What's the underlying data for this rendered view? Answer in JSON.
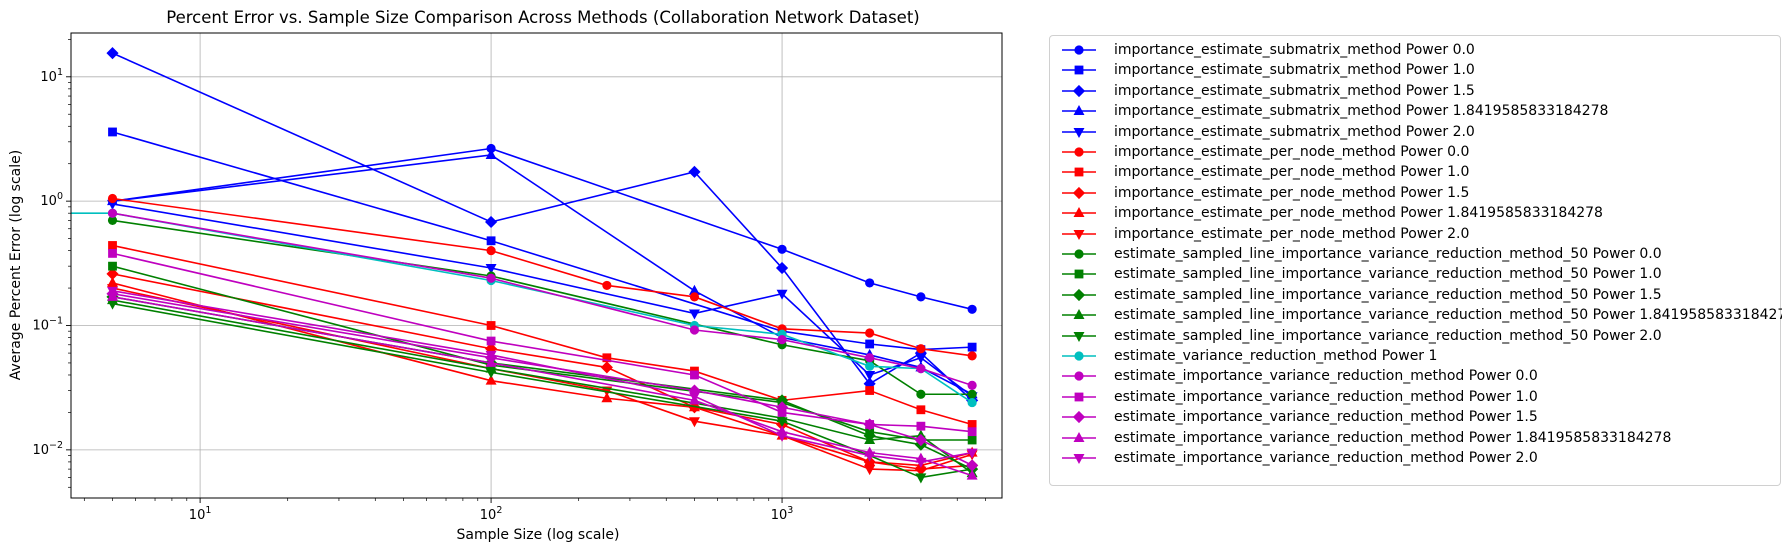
{
  "chart_data": {
    "type": "line",
    "title": "Percent Error vs. Sample Size Comparison Across Methods (Collaboration Network Dataset)",
    "xlabel": "Sample Size (log scale)",
    "ylabel": "Average Percent Error (log scale)",
    "xscale": "log",
    "yscale": "log",
    "xlim": [
      3.6,
      5700
    ],
    "ylim": [
      0.0041,
      22.5
    ],
    "grid": true,
    "legend_position": "outside-right",
    "x_ticks": [
      {
        "value": 10,
        "base": "10",
        "exp": "1"
      },
      {
        "value": 100,
        "base": "10",
        "exp": "2"
      },
      {
        "value": 1000,
        "base": "10",
        "exp": "3"
      }
    ],
    "y_ticks": [
      {
        "value": 0.01,
        "base": "10",
        "exp": "−2"
      },
      {
        "value": 0.1,
        "base": "10",
        "exp": "−1"
      },
      {
        "value": 1,
        "base": "10",
        "exp": "0"
      },
      {
        "value": 10,
        "base": "10",
        "exp": "1"
      }
    ],
    "series": [
      {
        "name": "importance_estimate_submatrix_method Power 0.0",
        "color": "#0000ff",
        "marker": "circle",
        "x": [
          5,
          100,
          1000,
          2000,
          3000,
          4500
        ],
        "y": [
          1.0,
          2.65,
          0.41,
          0.22,
          0.17,
          0.135
        ]
      },
      {
        "name": "importance_estimate_submatrix_method Power 1.0",
        "color": "#0000ff",
        "marker": "square",
        "x": [
          5,
          100,
          1000,
          2000,
          3000,
          4500
        ],
        "y": [
          3.6,
          0.48,
          0.09,
          0.071,
          0.064,
          0.067
        ]
      },
      {
        "name": "importance_estimate_submatrix_method Power 1.5",
        "color": "#0000ff",
        "marker": "diamond",
        "x": [
          5,
          100,
          500,
          1000,
          2000,
          3000,
          4500
        ],
        "y": [
          15.5,
          0.68,
          1.72,
          0.29,
          0.034,
          0.06,
          0.025
        ]
      },
      {
        "name": "importance_estimate_submatrix_method Power 1.8419585833184278",
        "color": "#0000ff",
        "marker": "triangle-up",
        "x": [
          5,
          100,
          500,
          1000,
          2000,
          3000,
          4500
        ],
        "y": [
          1.0,
          2.35,
          0.19,
          0.08,
          0.058,
          0.046,
          0.028
        ]
      },
      {
        "name": "importance_estimate_submatrix_method Power 2.0",
        "color": "#0000ff",
        "marker": "triangle-down",
        "x": [
          5,
          100,
          500,
          1000,
          2000,
          3000,
          4500
        ],
        "y": [
          0.95,
          0.29,
          0.125,
          0.18,
          0.04,
          0.055,
          0.027
        ]
      },
      {
        "name": "importance_estimate_per_node_method Power 0.0",
        "color": "#ff0000",
        "marker": "circle",
        "x": [
          5,
          100,
          250,
          500,
          1000,
          2000,
          3000,
          4500
        ],
        "y": [
          1.05,
          0.4,
          0.21,
          0.17,
          0.094,
          0.087,
          0.065,
          0.057
        ]
      },
      {
        "name": "importance_estimate_per_node_method Power 1.0",
        "color": "#ff0000",
        "marker": "square",
        "x": [
          5,
          100,
          250,
          500,
          1000,
          2000,
          3000,
          4500
        ],
        "y": [
          0.44,
          0.1,
          0.055,
          0.043,
          0.025,
          0.03,
          0.021,
          0.016
        ]
      },
      {
        "name": "importance_estimate_per_node_method Power 1.5",
        "color": "#ff0000",
        "marker": "diamond",
        "x": [
          5,
          100,
          250,
          500,
          1000,
          2000,
          3000,
          4500
        ],
        "y": [
          0.26,
          0.065,
          0.046,
          0.022,
          0.016,
          0.008,
          0.007,
          0.0075
        ]
      },
      {
        "name": "importance_estimate_per_node_method Power 1.8419585833184278",
        "color": "#ff0000",
        "marker": "triangle-up",
        "x": [
          5,
          100,
          250,
          500,
          1000,
          2000,
          3000,
          4500
        ],
        "y": [
          0.22,
          0.036,
          0.026,
          0.022,
          0.013,
          0.008,
          0.0075,
          0.0095
        ]
      },
      {
        "name": "importance_estimate_per_node_method Power 2.0",
        "color": "#ff0000",
        "marker": "triangle-down",
        "x": [
          5,
          100,
          250,
          500,
          1000,
          2000,
          3000,
          4500
        ],
        "y": [
          0.2,
          0.045,
          0.03,
          0.017,
          0.013,
          0.007,
          0.0068,
          0.0092
        ]
      },
      {
        "name": "estimate_sampled_line_importance_variance_reduction_method_50 Power 0.0",
        "color": "#008000",
        "marker": "circle",
        "x": [
          5,
          100,
          1000,
          2000,
          3000,
          4500
        ],
        "y": [
          0.7,
          0.25,
          0.07,
          0.052,
          0.028,
          0.028
        ]
      },
      {
        "name": "estimate_sampled_line_importance_variance_reduction_method_50 Power 1.0",
        "color": "#008000",
        "marker": "square",
        "x": [
          5,
          100,
          1000,
          2000,
          3000,
          4500
        ],
        "y": [
          0.3,
          0.048,
          0.024,
          0.014,
          0.012,
          0.012
        ]
      },
      {
        "name": "estimate_sampled_line_importance_variance_reduction_method_50 Power 1.5",
        "color": "#008000",
        "marker": "diamond",
        "x": [
          5,
          100,
          1000,
          2000,
          3000,
          4500
        ],
        "y": [
          0.17,
          0.05,
          0.025,
          0.013,
          0.011,
          0.007
        ]
      },
      {
        "name": "estimate_sampled_line_importance_variance_reduction_method_50 Power 1.8419585833184278",
        "color": "#008000",
        "marker": "triangle-up",
        "x": [
          5,
          100,
          1000,
          2000,
          3000,
          4500
        ],
        "y": [
          0.16,
          0.045,
          0.018,
          0.012,
          0.013,
          0.0065
        ]
      },
      {
        "name": "estimate_sampled_line_importance_variance_reduction_method_50 Power 2.0",
        "color": "#008000",
        "marker": "triangle-down",
        "x": [
          5,
          100,
          1000,
          2000,
          3000,
          4500
        ],
        "y": [
          0.15,
          0.042,
          0.017,
          0.009,
          0.006,
          0.007
        ]
      },
      {
        "name": "estimate_variance_reduction_method Power 1",
        "color": "#00bfbf",
        "marker": "circle",
        "x": [
          1,
          5,
          100,
          500,
          1000,
          2000,
          3000,
          4500
        ],
        "y": [
          0.8,
          0.8,
          0.23,
          0.1,
          0.085,
          0.047,
          0.045,
          0.024
        ]
      },
      {
        "name": "estimate_importance_variance_reduction_method Power 0.0",
        "color": "#bf00bf",
        "marker": "circle",
        "x": [
          5,
          100,
          500,
          1000,
          2000,
          3000,
          4500
        ],
        "y": [
          0.8,
          0.24,
          0.092,
          0.077,
          0.055,
          0.045,
          0.033
        ]
      },
      {
        "name": "estimate_importance_variance_reduction_method Power 1.0",
        "color": "#bf00bf",
        "marker": "square",
        "x": [
          5,
          100,
          500,
          1000,
          2000,
          3000,
          4500
        ],
        "y": [
          0.38,
          0.075,
          0.04,
          0.02,
          0.016,
          0.0155,
          0.014
        ]
      },
      {
        "name": "estimate_importance_variance_reduction_method Power 1.5",
        "color": "#bf00bf",
        "marker": "diamond",
        "x": [
          5,
          100,
          500,
          1000,
          2000,
          3000,
          4500
        ],
        "y": [
          0.18,
          0.055,
          0.03,
          0.022,
          0.016,
          0.012,
          0.0075
        ]
      },
      {
        "name": "estimate_importance_variance_reduction_method Power 1.8419585833184278",
        "color": "#bf00bf",
        "marker": "triangle-up",
        "x": [
          5,
          100,
          500,
          1000,
          2000,
          3000,
          4500
        ],
        "y": [
          0.17,
          0.05,
          0.025,
          0.014,
          0.0095,
          0.0085,
          0.0062
        ]
      },
      {
        "name": "estimate_importance_variance_reduction_method Power 2.0",
        "color": "#bf00bf",
        "marker": "triangle-down",
        "x": [
          5,
          100,
          500,
          1000,
          2000,
          3000,
          4500
        ],
        "y": [
          0.19,
          0.058,
          0.027,
          0.013,
          0.009,
          0.008,
          0.0095
        ]
      }
    ]
  }
}
